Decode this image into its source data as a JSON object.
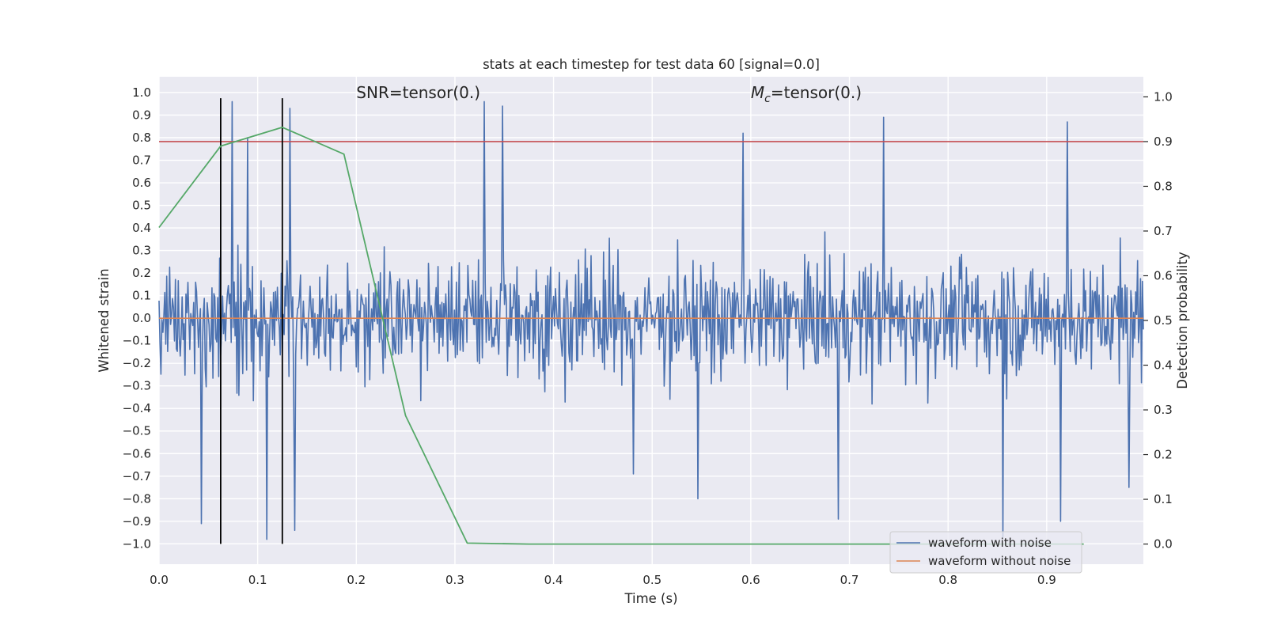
{
  "chart_data": {
    "type": "line",
    "title": "stats at each timestep for test data 60 [signal=0.0]",
    "xlabel": "Time (s)",
    "ylabel": "Whitened strain",
    "ylabel_right": "Detection probability",
    "xlim": [
      0.0,
      0.998
    ],
    "ylim": [
      -1.09,
      1.07
    ],
    "ylim_right": [
      -0.045,
      1.045
    ],
    "x_ticks": [
      0.0,
      0.1,
      0.2,
      0.3,
      0.4,
      0.5,
      0.6,
      0.7,
      0.8,
      0.9
    ],
    "x_tick_labels": [
      "0.0",
      "0.1",
      "0.2",
      "0.3",
      "0.4",
      "0.5",
      "0.6",
      "0.7",
      "0.8",
      "0.9"
    ],
    "y_ticks": [
      1.0,
      0.9,
      0.8,
      0.7,
      0.6,
      0.5,
      0.4,
      0.3,
      0.2,
      0.1,
      0.0,
      -0.1,
      -0.2,
      -0.3,
      -0.4,
      -0.5,
      -0.6,
      -0.7,
      -0.8,
      -0.9,
      -1.0
    ],
    "y_tick_labels": [
      "1.0",
      "0.9",
      "0.8",
      "0.7",
      "0.6",
      "0.5",
      "0.4",
      "0.3",
      "0.2",
      "0.1",
      "0.0",
      "−0.1",
      "−0.2",
      "−0.3",
      "−0.4",
      "−0.5",
      "−0.6",
      "−0.7",
      "−0.8",
      "−0.9",
      "−1.0"
    ],
    "y_right_ticks": [
      1.0,
      0.9,
      0.8,
      0.7,
      0.6,
      0.5,
      0.4,
      0.3,
      0.2,
      0.1,
      0.0
    ],
    "y_right_tick_labels": [
      "1.0",
      "0.9",
      "0.8",
      "0.7",
      "0.6",
      "0.5",
      "0.4",
      "0.3",
      "0.2",
      "0.1",
      "0.0"
    ],
    "grid": true,
    "legend_position": "lower-right",
    "annotations": [
      {
        "text": "SNR=tensor(0.)",
        "x": 0.2,
        "y": 1.0
      },
      {
        "text": "=tensor(0.)",
        "math_prefix": "M",
        "math_sub": "c",
        "x": 0.6,
        "y": 1.0
      }
    ],
    "series": [
      {
        "name": "waveform with noise",
        "color": "#4c72b0",
        "kind": "noise",
        "n_points": 1024,
        "range": [
          -1.0,
          1.0
        ],
        "peaks": [
          {
            "x": 0.074,
            "y": 0.96
          },
          {
            "x": 0.133,
            "y": 0.93
          },
          {
            "x": 0.33,
            "y": 0.96
          },
          {
            "x": 0.348,
            "y": 0.94
          },
          {
            "x": 0.735,
            "y": 0.89
          },
          {
            "x": 0.921,
            "y": 0.87
          },
          {
            "x": 0.592,
            "y": 0.82
          },
          {
            "x": 0.09,
            "y": 0.8
          },
          {
            "x": 0.043,
            "y": -0.91
          },
          {
            "x": 0.109,
            "y": -0.98
          },
          {
            "x": 0.138,
            "y": -0.94
          },
          {
            "x": 0.856,
            "y": -0.97
          },
          {
            "x": 0.914,
            "y": -0.9
          },
          {
            "x": 0.689,
            "y": -0.89
          },
          {
            "x": 0.546,
            "y": -0.8
          },
          {
            "x": 0.983,
            "y": -0.75
          },
          {
            "x": 0.481,
            "y": -0.69
          }
        ]
      },
      {
        "name": "waveform without noise",
        "color": "#dd8452",
        "kind": "constant",
        "value": 0.0
      }
    ],
    "detection_probability": {
      "color": "#55a868",
      "x": [
        0.0,
        0.0625,
        0.125,
        0.1875,
        0.25,
        0.3125,
        0.375,
        0.4375,
        0.5,
        0.5625,
        0.625,
        0.6875,
        0.75,
        0.8125,
        0.875,
        0.9375
      ],
      "y": [
        0.708,
        0.89,
        0.932,
        0.872,
        0.287,
        0.002,
        0.0,
        0.0,
        0.0,
        0.0,
        0.0,
        0.0,
        0.0,
        0.0,
        0.0,
        0.0
      ]
    },
    "threshold": {
      "color": "#c44e52",
      "value": 0.9
    },
    "vertical_markers": {
      "color": "#000000",
      "x": [
        0.0625,
        0.125
      ],
      "y_range": [
        -1.0,
        0.975
      ]
    }
  }
}
